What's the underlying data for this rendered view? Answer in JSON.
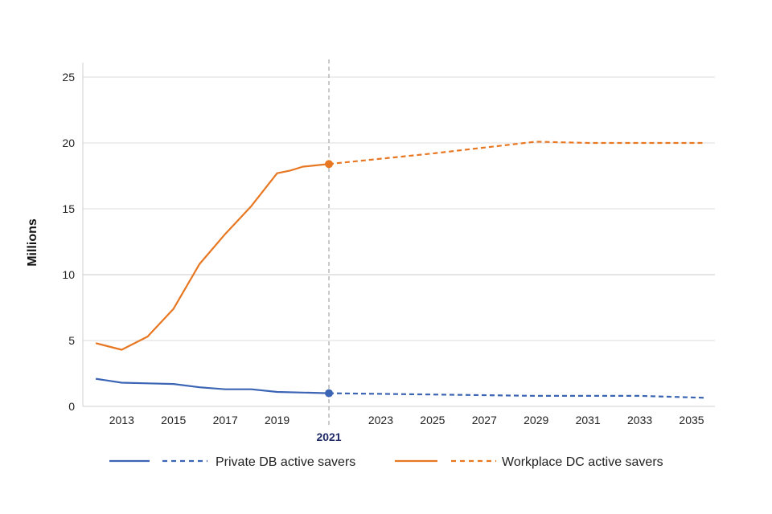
{
  "chart_data": {
    "type": "line",
    "ylabel": "Millions",
    "xlabel": "",
    "ylim": [
      0,
      25
    ],
    "xlim": [
      2011.5,
      2035.9
    ],
    "yticks": [
      0,
      5,
      10,
      15,
      20,
      25
    ],
    "xticks": [
      2013,
      2015,
      2017,
      2019,
      2021,
      2023,
      2025,
      2027,
      2029,
      2031,
      2033,
      2035
    ],
    "highlight_year": 2021,
    "grid": true,
    "legend_position": "bottom",
    "series": [
      {
        "name": "Private DB active savers",
        "color": "#3b64b4",
        "actual": {
          "x": [
            2012,
            2013,
            2014,
            2015,
            2016,
            2017,
            2018,
            2019,
            2020,
            2021
          ],
          "y": [
            2.1,
            1.8,
            1.75,
            1.7,
            1.45,
            1.3,
            1.3,
            1.1,
            1.05,
            1.0
          ]
        },
        "projected": {
          "x": [
            2021,
            2025,
            2029,
            2033,
            2035.5
          ],
          "y": [
            1.0,
            0.9,
            0.8,
            0.8,
            0.65
          ]
        }
      },
      {
        "name": "Workplace DC active savers",
        "color": "#e87722",
        "actual": {
          "x": [
            2012,
            2013,
            2014,
            2015,
            2016,
            2017,
            2018,
            2019,
            2019.5,
            2020,
            2020.5,
            2021
          ],
          "y": [
            4.8,
            4.3,
            5.3,
            7.4,
            10.8,
            13.1,
            15.2,
            17.7,
            17.9,
            18.2,
            18.3,
            18.4
          ]
        },
        "projected": {
          "x": [
            2021,
            2025,
            2029,
            2031,
            2035.5
          ],
          "y": [
            18.4,
            19.2,
            20.1,
            20.0,
            20.0
          ]
        }
      }
    ]
  }
}
